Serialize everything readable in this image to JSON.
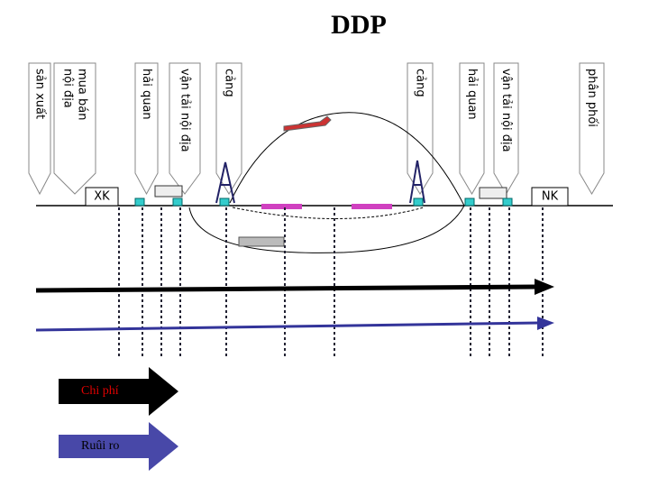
{
  "header": {
    "title": "DDP"
  },
  "labels": [
    {
      "lines": [
        "sản xuất"
      ]
    },
    {
      "lines": [
        "mua bán",
        "nội địa"
      ]
    },
    {
      "lines": [
        "hải quan"
      ]
    },
    {
      "lines": [
        "vận tải nội địa"
      ]
    },
    {
      "lines": [
        "cảng"
      ]
    },
    {
      "lines": [
        "cảng"
      ]
    },
    {
      "lines": [
        "hải quan"
      ]
    },
    {
      "lines": [
        "vận tải nội địa"
      ]
    },
    {
      "lines": [
        "phân phối"
      ]
    }
  ],
  "exporter": "XK",
  "importer": "NK",
  "legend": {
    "cost": "Chi phí",
    "risk": "Ruûi ro"
  }
}
